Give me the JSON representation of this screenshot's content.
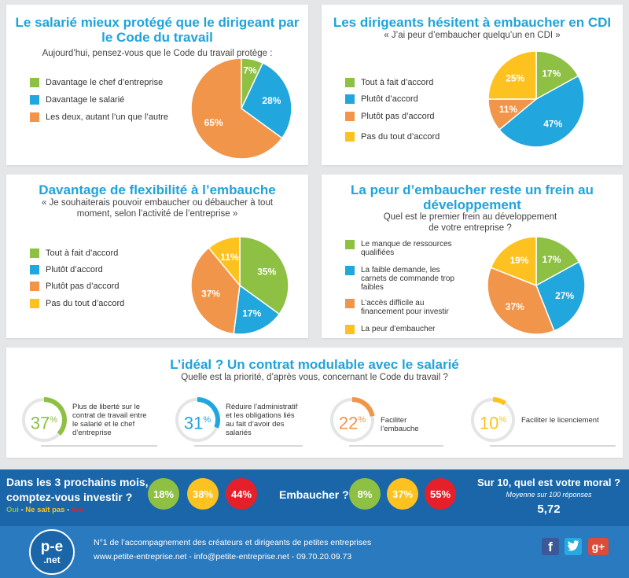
{
  "colors": {
    "green": "#8dc043",
    "blue": "#21a6dd",
    "orange": "#f0954a",
    "yellow": "#fdc21f",
    "title": "#1fa3dc",
    "band": "#1a66a8",
    "footer": "#2a7ac0",
    "red": "#e5202a"
  },
  "panel1": {
    "title_line1": "Le salarié mieux protégé que le dirigeant par",
    "title_line2": "le Code du travail",
    "subtitle": "Aujourd’hui, pensez-vous que le Code du travail protège :",
    "legend": [
      "Davantage le chef d’entreprise",
      "Davantage le salarié",
      "Les deux, autant l’un que l’autre"
    ]
  },
  "panel2": {
    "title": "Les dirigeants hésitent à embaucher en CDI",
    "subtitle": "« J’ai peur d’embaucher quelqu’un en CDI »",
    "legend": [
      "Tout à fait d’accord",
      "Plutôt d’accord",
      "Plutôt pas d’accord",
      "Pas du tout d’accord"
    ]
  },
  "panel3": {
    "title": "Davantage de flexibilité à l’embauche",
    "subtitle_line1": "« Je souhaiterais pouvoir embaucher ou débaucher à tout",
    "subtitle_line2": "moment, selon l’activité de l’entreprise »",
    "legend": [
      "Tout à fait d’accord",
      "Plutôt d’accord",
      "Plutôt pas d’accord",
      "Pas du tout d’accord"
    ]
  },
  "panel4": {
    "title_line1": "La peur d’embaucher reste un frein au",
    "title_line2": "développement",
    "subtitle_line1": "Quel est le premier frein au développement",
    "subtitle_line2": "de votre entreprise ?",
    "legend": [
      [
        "Le manque de ressources",
        "qualifiées"
      ],
      [
        "La faible demande, les",
        "carnets de commande trop",
        "faibles"
      ],
      [
        "L’accès difficile au",
        "financement pour investir"
      ],
      [
        "La peur d’embaucher"
      ]
    ]
  },
  "panel5": {
    "title": "L’idéal ? Un contrat modulable avec le salarié",
    "subtitle": "Quelle est la priorité, d’après vous, concernant le Code du travail ?",
    "items": [
      {
        "num": "37",
        "pct": "%",
        "label": [
          "Plus de liberté sur le",
          "contrat de travail entre",
          "le salarié et le chef",
          "d’entreprise"
        ]
      },
      {
        "num": "31",
        "pct": "%",
        "label": [
          "Réduire l’administratif",
          "et les obligations liés",
          "au fait d’avoir des",
          "salariés"
        ]
      },
      {
        "num": "22",
        "pct": "%",
        "label": [
          "Faciliter l’embauche"
        ]
      },
      {
        "num": "10",
        "pct": "%",
        "label": [
          "Faciliter le licenciement"
        ]
      }
    ]
  },
  "band": {
    "invest_q1": "Dans les 3 prochains mois,",
    "invest_q2": "comptez-vous investir ?",
    "legend_oui": "Oui",
    "legend_sep1": " - ",
    "legend_nsp": "Ne sait pas",
    "legend_sep2": " - ",
    "legend_non": "Non",
    "invest": [
      "18%",
      "38%",
      "44%"
    ],
    "hire_q": "Embaucher ?",
    "hire": [
      "8%",
      "37%",
      "55%"
    ],
    "moral_q": "Sur 10, quel est votre moral ?",
    "moral_sub": "Moyenne sur 100 réponses",
    "moral_value": "5,72"
  },
  "footer": {
    "logo_top": "p-e",
    "logo_bottom": ".net",
    "line1": "N°1 de l’accompagnement des créateurs et dirigeants de petites entreprises",
    "line2": "www.petite-entreprise.net - info@petite-entreprise.net - 09.70.20.09.73",
    "social_icons": [
      "facebook-icon",
      "twitter-icon",
      "google-plus-icon"
    ],
    "fb_glyph": "f",
    "gplus_glyph": "g+"
  },
  "chart_data": [
    {
      "type": "pie",
      "title": "Le salarié mieux protégé que le dirigeant par le Code du travail",
      "categories": [
        "Davantage le chef d’entreprise",
        "Davantage le salarié",
        "Les deux, autant l’un que l’autre"
      ],
      "values": [
        7,
        28,
        65
      ],
      "labels": [
        "7%",
        "28%",
        "65%"
      ],
      "colors": [
        "#8dc043",
        "#21a6dd",
        "#f0954a"
      ]
    },
    {
      "type": "pie",
      "title": "Les dirigeants hésitent à embaucher en CDI",
      "categories": [
        "Tout à fait d’accord",
        "Plutôt d’accord",
        "Plutôt pas d’accord",
        "Pas du tout d’accord"
      ],
      "values": [
        17,
        47,
        11,
        25
      ],
      "labels": [
        "17%",
        "47%",
        "11%",
        "25%"
      ],
      "colors": [
        "#8dc043",
        "#21a6dd",
        "#f0954a",
        "#fdc21f"
      ]
    },
    {
      "type": "pie",
      "title": "Davantage de flexibilité à l’embauche",
      "categories": [
        "Tout à fait d’accord",
        "Plutôt d’accord",
        "Plutôt pas d’accord",
        "Pas du tout d’accord"
      ],
      "values": [
        35,
        17,
        37,
        11
      ],
      "labels": [
        "35%",
        "17%",
        "37%",
        "11%"
      ],
      "colors": [
        "#8dc043",
        "#21a6dd",
        "#f0954a",
        "#fdc21f"
      ]
    },
    {
      "type": "pie",
      "title": "La peur d’embaucher reste un frein au développement",
      "categories": [
        "Le manque de ressources qualifiées",
        "La faible demande, les carnets de commande trop faibles",
        "L’accès difficile au financement pour investir",
        "La peur d’embaucher"
      ],
      "values": [
        17,
        27,
        37,
        19
      ],
      "labels": [
        "17%",
        "27%",
        "37%",
        "19%"
      ],
      "colors": [
        "#8dc043",
        "#21a6dd",
        "#f0954a",
        "#fdc21f"
      ]
    },
    {
      "type": "bar",
      "title": "L’idéal ? Un contrat modulable avec le salarié",
      "categories": [
        "Plus de liberté sur le contrat de travail entre le salarié et le chef d’entreprise",
        "Réduire l’administratif et les obligations liés au fait d’avoir des salariés",
        "Faciliter l’embauche",
        "Faciliter le licenciement"
      ],
      "values": [
        37,
        31,
        22,
        10
      ],
      "colors": [
        "#8dc043",
        "#21a6dd",
        "#f0954a",
        "#fdc21f"
      ]
    },
    {
      "type": "pie",
      "title": "Dans les 3 prochains mois, comptez-vous investir ?",
      "categories": [
        "Oui",
        "Ne sait pas",
        "Non"
      ],
      "values": [
        18,
        38,
        44
      ],
      "colors": [
        "#8dc043",
        "#fdc21f",
        "#e5202a"
      ]
    },
    {
      "type": "pie",
      "title": "Embaucher ?",
      "categories": [
        "Oui",
        "Ne sait pas",
        "Non"
      ],
      "values": [
        8,
        37,
        55
      ],
      "colors": [
        "#8dc043",
        "#fdc21f",
        "#e5202a"
      ]
    }
  ]
}
